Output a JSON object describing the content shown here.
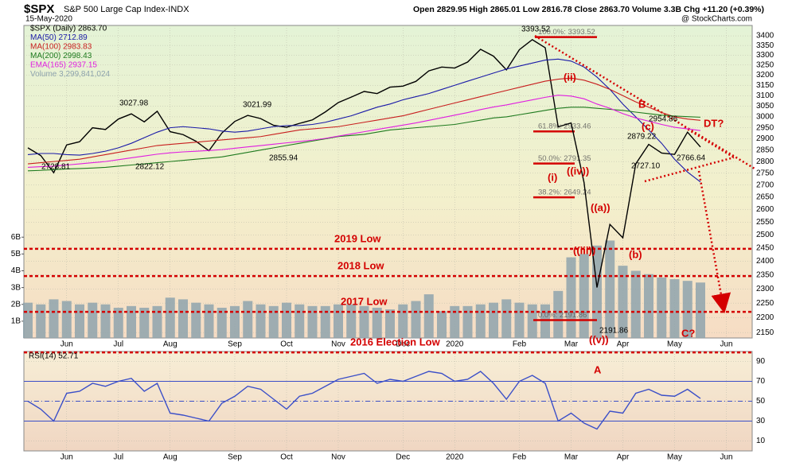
{
  "chart_data": [
    {
      "type": "line",
      "title": "$SPX",
      "subtitle": "S&P 500 Large Cap Index-INDX",
      "date": "15-May-2020",
      "quote": "Open 2829.95  High 2865.01  Low 2816.78  Close 2863.70  Volume 3.3B  Chg +11.20 (+0.39%)",
      "watermark": "@ StockCharts.com",
      "log_scale": true,
      "grid": true,
      "categories": [
        null,
        null,
        null,
        "Jun",
        null,
        null,
        null,
        "Jul",
        null,
        null,
        null,
        "Aug",
        null,
        null,
        null,
        null,
        "Sep",
        null,
        null,
        null,
        "Oct",
        null,
        null,
        null,
        "Nov",
        null,
        null,
        null,
        null,
        "Dec",
        null,
        null,
        null,
        "2020",
        null,
        null,
        null,
        null,
        "Feb",
        null,
        null,
        null,
        "Mar",
        null,
        null,
        null,
        "Apr",
        null,
        null,
        null,
        "May",
        null,
        null,
        null,
        "Jun",
        null,
        null
      ],
      "ylim": [
        2132,
        3455
      ],
      "yticks": [
        2150,
        2200,
        2250,
        2300,
        2350,
        2400,
        2450,
        2500,
        2550,
        2600,
        2650,
        2700,
        2750,
        2800,
        2850,
        2900,
        2950,
        3000,
        3050,
        3100,
        3150,
        3200,
        3250,
        3300,
        3350,
        3400
      ],
      "y2lim": [
        0,
        18600000000
      ],
      "y2ticks": [
        {
          "value": 1000000000,
          "label": "1B"
        },
        {
          "value": 2000000000,
          "label": "2B"
        },
        {
          "value": 3000000000,
          "label": "3B"
        },
        {
          "value": 4000000000,
          "label": "4B"
        },
        {
          "value": 5000000000,
          "label": "5B"
        },
        {
          "value": 6000000000,
          "label": "6B"
        }
      ],
      "series": [
        {
          "name": "$SPX (Daily) 2863.70",
          "color": "#000000",
          "values": [
            2860,
            2826,
            2752,
            2873,
            2887,
            2950,
            2942,
            2990,
            3014,
            2977,
            3026,
            2932,
            2919,
            2889,
            2847,
            2926,
            2979,
            3007,
            2992,
            2961,
            2952,
            2970,
            2986,
            3023,
            3067,
            3093,
            3120,
            3110,
            3141,
            3146,
            3169,
            3221,
            3240,
            3235,
            3265,
            3330,
            3295,
            3226,
            3328,
            3380,
            3338,
            2954,
            2972,
            2711,
            2305,
            2541,
            2489,
            2790,
            2875,
            2837,
            2831,
            2930,
            2863.7,
            null,
            null,
            null,
            null
          ]
        },
        {
          "name": "MA(50) 2712.89",
          "color": "#1a1aa8",
          "values": [
            2830,
            2835,
            2835,
            2830,
            2828,
            2835,
            2845,
            2860,
            2880,
            2905,
            2930,
            2950,
            2955,
            2950,
            2945,
            2935,
            2930,
            2935,
            2945,
            2955,
            2960,
            2960,
            2965,
            2975,
            2990,
            3005,
            3025,
            3045,
            3060,
            3080,
            3095,
            3110,
            3130,
            3150,
            3170,
            3190,
            3210,
            3230,
            3245,
            3260,
            3275,
            3280,
            3270,
            3240,
            3190,
            3130,
            3060,
            3000,
            2940,
            2880,
            2810,
            2755,
            2712.89,
            null,
            null,
            null,
            null
          ]
        },
        {
          "name": "MA(100) 2983.83",
          "color": "#c81e1e",
          "values": [
            2790,
            2795,
            2800,
            2805,
            2810,
            2820,
            2830,
            2840,
            2850,
            2860,
            2870,
            2875,
            2880,
            2885,
            2890,
            2895,
            2900,
            2905,
            2910,
            2920,
            2930,
            2940,
            2945,
            2950,
            2955,
            2965,
            2975,
            2985,
            2995,
            3005,
            3020,
            3035,
            3050,
            3065,
            3080,
            3095,
            3110,
            3125,
            3140,
            3155,
            3170,
            3180,
            3185,
            3175,
            3155,
            3130,
            3100,
            3070,
            3045,
            3020,
            3000,
            2990,
            2983.83,
            null,
            null,
            null,
            null
          ]
        },
        {
          "name": "MA(200) 2998.43",
          "color": "#1e7a1e",
          "values": [
            2760,
            2762,
            2765,
            2768,
            2770,
            2772,
            2775,
            2780,
            2785,
            2790,
            2795,
            2800,
            2805,
            2810,
            2815,
            2820,
            2830,
            2840,
            2850,
            2860,
            2870,
            2880,
            2890,
            2900,
            2910,
            2915,
            2920,
            2930,
            2940,
            2945,
            2950,
            2955,
            2960,
            2965,
            2975,
            2985,
            2995,
            3000,
            3010,
            3020,
            3030,
            3040,
            3045,
            3045,
            3040,
            3035,
            3030,
            3022,
            3015,
            3008,
            3004,
            3001,
            2998.43,
            null,
            null,
            null,
            null
          ]
        },
        {
          "name": "EMA(165) 2937.15",
          "color": "#e01ee0",
          "values": [
            2775,
            2778,
            2780,
            2785,
            2790,
            2795,
            2800,
            2808,
            2816,
            2824,
            2832,
            2838,
            2842,
            2845,
            2848,
            2852,
            2858,
            2864,
            2870,
            2876,
            2882,
            2888,
            2894,
            2902,
            2912,
            2922,
            2932,
            2942,
            2952,
            2962,
            2972,
            2984,
            2996,
            3008,
            3020,
            3034,
            3046,
            3056,
            3068,
            3080,
            3092,
            3102,
            3098,
            3085,
            3060,
            3040,
            3015,
            2995,
            2980,
            2965,
            2952,
            2945,
            2937.15,
            null,
            null,
            null,
            null
          ]
        },
        {
          "name": "Volume 3,299,841,024",
          "color": "#8ea3ad",
          "axis": "y2",
          "values": [
            2100000000,
            2000000000,
            2300000000,
            2200000000,
            2000000000,
            2100000000,
            2000000000,
            1800000000,
            1900000000,
            1800000000,
            1900000000,
            2400000000,
            2300000000,
            2100000000,
            2000000000,
            1800000000,
            1900000000,
            2200000000,
            2000000000,
            1900000000,
            2100000000,
            2000000000,
            1900000000,
            1900000000,
            2000000000,
            2000000000,
            1900000000,
            1800000000,
            1700000000,
            2000000000,
            2200000000,
            2600000000,
            1600000000,
            1900000000,
            1900000000,
            2000000000,
            2100000000,
            2300000000,
            2100000000,
            2000000000,
            2000000000,
            2800000000,
            4800000000,
            5000000000,
            5500000000,
            5800000000,
            4300000000,
            4000000000,
            3800000000,
            3600000000,
            3500000000,
            3400000000,
            3299841024,
            null,
            null,
            null,
            null
          ]
        }
      ],
      "levels": [
        {
          "label": "2019 Low",
          "value": 2447,
          "color": "#d40000"
        },
        {
          "label": "2018 Low",
          "value": 2346,
          "color": "#d40000"
        },
        {
          "label": "2017 Low",
          "value": 2220,
          "color": "#d40000"
        },
        {
          "label": "2016 Election Low",
          "value": 2085,
          "color": "#d40000"
        }
      ],
      "fib_levels": [
        {
          "label": "100.0%: 3393.52",
          "value": 3393.52
        },
        {
          "label": "61.8%: 2933.46",
          "value": 2933.46
        },
        {
          "label": "50.0%: 2791.35",
          "value": 2791.35
        },
        {
          "label": "38.2%: 2649.24",
          "value": 2649.24
        },
        {
          "label": "0.0%: 2191.86",
          "value": 2191.86
        }
      ],
      "annotations": [
        {
          "text": "3393.52",
          "color": "#000000"
        },
        {
          "text": "3027.98",
          "color": "#000000"
        },
        {
          "text": "3021.99",
          "color": "#000000"
        },
        {
          "text": "2822.12",
          "color": "#000000"
        },
        {
          "text": "2855.94",
          "color": "#000000"
        },
        {
          "text": "2728.81",
          "color": "#000000"
        },
        {
          "text": "2191.86",
          "color": "#000000"
        },
        {
          "text": "2954.86",
          "color": "#000000"
        },
        {
          "text": "2879.22",
          "color": "#000000"
        },
        {
          "text": "2727.10",
          "color": "#000000"
        },
        {
          "text": "2766.64",
          "color": "#000000"
        },
        {
          "text": "(ii)",
          "color": "#d40000"
        },
        {
          "text": "(i)",
          "color": "#d40000"
        },
        {
          "text": "((iv))",
          "color": "#d40000"
        },
        {
          "text": "((a))",
          "color": "#d40000"
        },
        {
          "text": "((iii))",
          "color": "#d40000"
        },
        {
          "text": "(b)",
          "color": "#d40000"
        },
        {
          "text": "(c)",
          "color": "#d40000"
        },
        {
          "text": "B",
          "color": "#d40000"
        },
        {
          "text": "DT?",
          "color": "#d40000"
        },
        {
          "text": "A",
          "color": "#d40000"
        },
        {
          "text": "C?",
          "color": "#d40000"
        },
        {
          "text": "((v))",
          "color": "#d40000"
        }
      ]
    },
    {
      "type": "line",
      "categories": [
        null,
        null,
        null,
        "Jun",
        null,
        null,
        null,
        "Jul",
        null,
        null,
        null,
        "Aug",
        null,
        null,
        null,
        null,
        "Sep",
        null,
        null,
        null,
        "Oct",
        null,
        null,
        null,
        "Nov",
        null,
        null,
        null,
        null,
        "Dec",
        null,
        null,
        null,
        "2020",
        null,
        null,
        null,
        null,
        "Feb",
        null,
        null,
        null,
        "Mar",
        null,
        null,
        null,
        "Apr",
        null,
        null,
        null,
        "May",
        null,
        null,
        null,
        "Jun",
        null,
        null
      ],
      "ylim": [
        0,
        100
      ],
      "yticks": [
        10,
        30,
        50,
        70,
        90
      ],
      "bands": [
        30,
        70
      ],
      "midline": 50,
      "series": [
        {
          "name": "RSI(14) 52.71",
          "color": "#3b4fc8",
          "values": [
            50,
            42,
            30,
            58,
            60,
            68,
            65,
            70,
            73,
            60,
            68,
            38,
            36,
            33,
            30,
            48,
            55,
            65,
            62,
            52,
            42,
            55,
            58,
            65,
            72,
            75,
            78,
            68,
            72,
            70,
            75,
            80,
            78,
            70,
            72,
            80,
            68,
            52,
            70,
            76,
            68,
            30,
            38,
            28,
            22,
            40,
            38,
            58,
            62,
            56,
            55,
            62,
            52.71,
            null,
            null,
            null,
            null
          ]
        }
      ]
    }
  ]
}
